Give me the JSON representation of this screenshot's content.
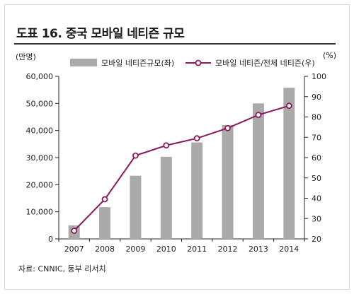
{
  "title": "도표 16. 중국 모바일 네티즌 규모",
  "source": "자료: CNNIC, 동부 리서치",
  "colors": {
    "bar": "#aaaaaa",
    "line": "#8b1a5a",
    "marker_fill": "#ffffff",
    "axis": "#222222"
  },
  "chart_data": {
    "type": "bar",
    "categories": [
      "2007",
      "2008",
      "2009",
      "2010",
      "2011",
      "2012",
      "2013",
      "2014"
    ],
    "series": [
      {
        "name": "모바일 네티즌규모(좌)",
        "type": "bar",
        "axis": "left",
        "values": [
          5000,
          11700,
          23300,
          30300,
          35600,
          42000,
          50000,
          55800
        ]
      },
      {
        "name": "모바일 네티즌/전체 네티즌(우)",
        "type": "line",
        "axis": "right",
        "values": [
          24,
          39.5,
          61,
          66,
          69.5,
          74.5,
          81,
          85.5
        ]
      }
    ],
    "y_left": {
      "label": "(만명)",
      "lim": [
        0,
        60000
      ],
      "ticks": [
        "0",
        "10,000",
        "20,000",
        "30,000",
        "40,000",
        "50,000",
        "60,000"
      ]
    },
    "y_right": {
      "label": "(%)",
      "lim": [
        20,
        100
      ],
      "ticks": [
        "20",
        "30",
        "40",
        "50",
        "60",
        "70",
        "80",
        "90",
        "100"
      ]
    },
    "grid": false,
    "legend": "top"
  }
}
